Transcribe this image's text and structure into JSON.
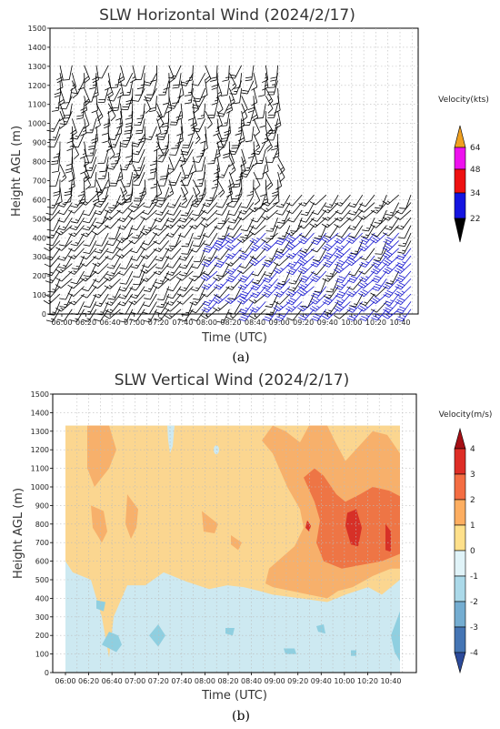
{
  "chart_data": [
    {
      "type": "wind-barb",
      "title": "SLW Horizontal Wind (2024/2/17)",
      "xlabel": "Time (UTC)",
      "ylabel": "Height AGL (m)",
      "x_ticks": [
        "06:00",
        "06:20",
        "06:40",
        "07:00",
        "07:20",
        "07:40",
        "08:00",
        "08:20",
        "08:40",
        "09:00",
        "09:20",
        "09:40",
        "10:00",
        "10:20",
        "10:40"
      ],
      "y_ticks": [
        "0",
        "100",
        "200",
        "300",
        "400",
        "500",
        "600",
        "700",
        "800",
        "900",
        "1000",
        "1100",
        "1200",
        "1300",
        "1400",
        "1500"
      ],
      "ylim": [
        0,
        1500
      ],
      "grid": true,
      "panel_label": "(a)",
      "colorbar": {
        "title": "Velocity(kts)",
        "levels": [
          "22",
          "34",
          "48",
          "64"
        ],
        "colors": [
          "#000000",
          "#1515e0",
          "#ee1111",
          "#ee11ee",
          "#f0a020"
        ]
      }
    },
    {
      "type": "contourf",
      "title": "SLW Vertical Wind (2024/2/17)",
      "xlabel": "Time (UTC)",
      "ylabel": "Height AGL (m)",
      "x_ticks": [
        "06:00",
        "06:20",
        "06:40",
        "07:00",
        "07:20",
        "07:40",
        "08:00",
        "08:20",
        "08:40",
        "09:00",
        "09:20",
        "09:40",
        "10:00",
        "10:20",
        "10:40"
      ],
      "y_ticks": [
        "0",
        "100",
        "200",
        "300",
        "400",
        "500",
        "600",
        "700",
        "800",
        "900",
        "1000",
        "1100",
        "1200",
        "1300",
        "1400",
        "1500"
      ],
      "ylim": [
        0,
        1500
      ],
      "data_top_m": 1330,
      "grid": true,
      "panel_label": "(b)",
      "colorbar": {
        "title": "Velocity(m/s)",
        "labels": [
          "4",
          "3",
          "2",
          "1",
          "0",
          "-1",
          "-2",
          "-3",
          "-4"
        ],
        "colors": [
          "#a50f15",
          "#de2d26",
          "#f46d43",
          "#fdae61",
          "#fee08b",
          "#e0f3f8",
          "#abd9e9",
          "#74add1",
          "#4575b4",
          "#2c4a9a"
        ]
      },
      "color_roles": {
        "neg1": "#cde9f1",
        "pos1": "#fbd690",
        "pos2": "#f7b06b",
        "pos3": "#ee7545",
        "pos4": "#d73027",
        "neg2": "#8fcfe0"
      }
    }
  ]
}
